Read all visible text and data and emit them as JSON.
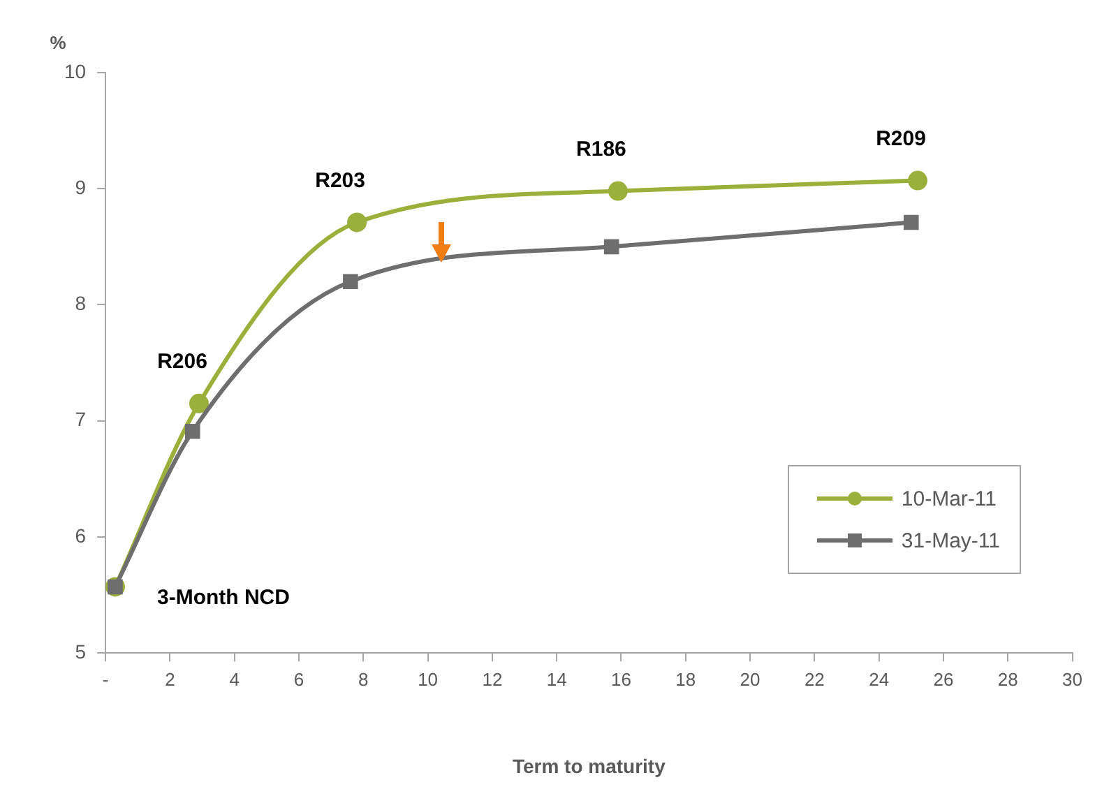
{
  "chart_data": {
    "type": "line",
    "xlabel": "Term to maturity",
    "ylabel": "%",
    "xlim": [
      0,
      30
    ],
    "xticks": [
      {
        "value": 0,
        "label": "-"
      },
      2,
      4,
      6,
      8,
      10,
      12,
      14,
      16,
      18,
      20,
      22,
      24,
      26,
      28,
      30
    ],
    "ylim": [
      5,
      10
    ],
    "yticks": [
      5,
      6,
      7,
      8,
      9,
      10
    ],
    "grid": false,
    "legend": "bottom right",
    "line_style": "solid",
    "series": [
      {
        "name": "10-Mar-11",
        "color": "#9bb03b",
        "marker": "circle",
        "x": [
          0.3,
          2.9,
          7.8,
          15.9,
          25.2
        ],
        "values": [
          5.57,
          7.15,
          8.71,
          8.98,
          9.07
        ]
      },
      {
        "name": "31-May-11",
        "color": "#6e6e6e",
        "marker": "square",
        "x": [
          0.3,
          2.7,
          7.6,
          15.7,
          25.0
        ],
        "values": [
          5.57,
          6.91,
          8.2,
          8.5,
          8.71
        ]
      }
    ],
    "annotations": [
      {
        "text": "3-Month NCD",
        "x": 0.3,
        "y": 5.57
      },
      {
        "text": "R206",
        "x": 2.9,
        "y": 7.15
      },
      {
        "text": "R203",
        "x": 7.8,
        "y": 8.71
      },
      {
        "text": "R186",
        "x": 15.9,
        "y": 8.98
      },
      {
        "text": "R209",
        "x": 25.2,
        "y": 9.07
      }
    ]
  }
}
